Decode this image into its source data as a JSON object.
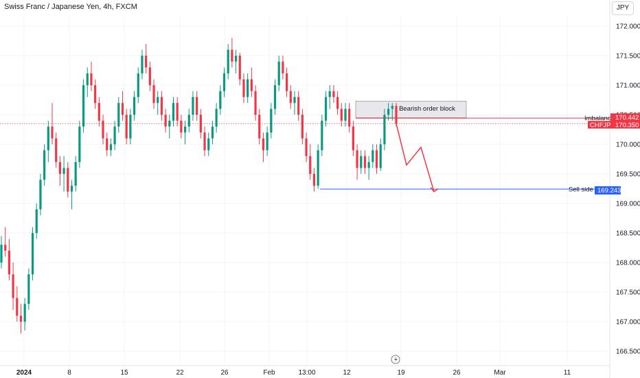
{
  "header": {
    "title": "Swiss Franc / Japanese Yen, 4h, FXCM",
    "currency_button": "JPY"
  },
  "colors": {
    "up": "#089981",
    "down": "#f23645",
    "blue_line": "#2962ff",
    "grid": "#f0f3fa",
    "order_block_fill": "#e8e8ec",
    "order_block_border": "#9598a1"
  },
  "chart_data": {
    "type": "candlestick",
    "title": "Swiss Franc / Japanese Yen, 4h, FXCM",
    "symbol": "CHFJPY",
    "ylim": [
      166.4,
      172.2
    ],
    "y_ticks": [
      "172.000",
      "171.500",
      "171.000",
      "170.500",
      "170.000",
      "169.500",
      "169.000",
      "168.500",
      "168.000",
      "167.500",
      "167.000",
      "166.500"
    ],
    "x_tick_labels": [
      "2024",
      "8",
      "15",
      "22",
      "26",
      "Feb",
      "13:00",
      "12",
      "19",
      "26",
      "Mar",
      "11"
    ],
    "price_tags": [
      {
        "label": "170.442",
        "value": 170.442,
        "color": "#f23645"
      },
      {
        "label": "CHFJPY",
        "color": "#f23645"
      },
      {
        "label": "170.350",
        "value": 170.35,
        "color": "#f23645"
      },
      {
        "label": "169.243",
        "value": 169.243,
        "color": "#2962ff"
      }
    ],
    "annotations": {
      "bearish_order_block": {
        "label": "Bearish order block",
        "top": 170.73,
        "bottom": 170.45
      },
      "imbalance": {
        "label": "Imbalance",
        "value": 170.442
      },
      "sell_side_liquidity": {
        "label": "Sell side liquidity",
        "value": 169.243
      },
      "projection": [
        170.35,
        169.65,
        169.95,
        169.2
      ]
    },
    "candles": [
      [
        168.0,
        168.45,
        167.9,
        168.3
      ],
      [
        168.3,
        168.6,
        168.1,
        168.2
      ],
      [
        168.2,
        168.4,
        167.7,
        167.8
      ],
      [
        167.8,
        168.0,
        167.2,
        167.4
      ],
      [
        167.4,
        167.6,
        167.0,
        167.1
      ],
      [
        167.1,
        167.3,
        166.8,
        167.0
      ],
      [
        167.0,
        167.4,
        166.85,
        167.3
      ],
      [
        167.3,
        167.9,
        167.2,
        167.8
      ],
      [
        167.8,
        168.6,
        167.7,
        168.5
      ],
      [
        168.5,
        169.0,
        168.4,
        168.9
      ],
      [
        168.9,
        169.5,
        168.8,
        169.4
      ],
      [
        169.4,
        170.0,
        169.3,
        169.9
      ],
      [
        169.9,
        170.4,
        169.7,
        170.3
      ],
      [
        170.3,
        170.7,
        170.0,
        170.1
      ],
      [
        170.1,
        170.2,
        169.6,
        169.7
      ],
      [
        169.7,
        169.8,
        169.3,
        169.5
      ],
      [
        169.5,
        169.8,
        169.2,
        169.6
      ],
      [
        169.6,
        169.7,
        169.1,
        169.2
      ],
      [
        169.2,
        169.4,
        168.9,
        169.3
      ],
      [
        169.3,
        169.8,
        169.2,
        169.7
      ],
      [
        169.7,
        170.4,
        169.6,
        170.3
      ],
      [
        170.3,
        171.1,
        170.2,
        171.0
      ],
      [
        171.0,
        171.3,
        170.8,
        171.2
      ],
      [
        171.2,
        171.4,
        170.9,
        171.0
      ],
      [
        171.0,
        171.1,
        170.6,
        170.7
      ],
      [
        170.7,
        170.8,
        170.3,
        170.4
      ],
      [
        170.4,
        170.5,
        170.0,
        170.1
      ],
      [
        170.1,
        170.2,
        169.8,
        169.9
      ],
      [
        169.9,
        170.1,
        169.8,
        170.0
      ],
      [
        170.0,
        170.4,
        169.9,
        170.3
      ],
      [
        170.3,
        170.8,
        170.2,
        170.7
      ],
      [
        170.7,
        170.9,
        170.4,
        170.5
      ],
      [
        170.5,
        170.6,
        170.0,
        170.1
      ],
      [
        170.1,
        170.6,
        170.0,
        170.5
      ],
      [
        170.5,
        170.9,
        170.4,
        170.8
      ],
      [
        170.8,
        171.3,
        170.7,
        171.2
      ],
      [
        171.2,
        171.6,
        171.1,
        171.5
      ],
      [
        171.5,
        171.7,
        171.2,
        171.3
      ],
      [
        171.3,
        171.4,
        170.9,
        171.0
      ],
      [
        171.0,
        171.1,
        170.6,
        170.7
      ],
      [
        170.7,
        170.9,
        170.5,
        170.8
      ],
      [
        170.8,
        170.9,
        170.4,
        170.5
      ],
      [
        170.5,
        170.6,
        170.2,
        170.3
      ],
      [
        170.3,
        170.5,
        170.1,
        170.4
      ],
      [
        170.4,
        170.8,
        170.3,
        170.7
      ],
      [
        170.7,
        170.8,
        170.3,
        170.4
      ],
      [
        170.4,
        170.5,
        170.1,
        170.2
      ],
      [
        170.2,
        170.4,
        170.0,
        170.3
      ],
      [
        170.3,
        170.6,
        170.2,
        170.5
      ],
      [
        170.5,
        170.9,
        170.4,
        170.8
      ],
      [
        170.8,
        170.9,
        170.4,
        170.5
      ],
      [
        170.5,
        170.6,
        170.1,
        170.2
      ],
      [
        170.2,
        170.3,
        169.8,
        169.9
      ],
      [
        169.9,
        170.2,
        169.8,
        170.1
      ],
      [
        170.1,
        170.4,
        170.0,
        170.3
      ],
      [
        170.3,
        170.7,
        170.2,
        170.6
      ],
      [
        170.6,
        171.0,
        170.5,
        170.9
      ],
      [
        170.9,
        171.3,
        170.8,
        171.2
      ],
      [
        171.2,
        171.7,
        171.1,
        171.6
      ],
      [
        171.6,
        171.8,
        171.3,
        171.4
      ],
      [
        171.4,
        171.6,
        171.2,
        171.5
      ],
      [
        171.5,
        171.55,
        171.0,
        171.1
      ],
      [
        171.1,
        171.2,
        170.7,
        170.8
      ],
      [
        170.8,
        171.2,
        170.7,
        171.1
      ],
      [
        171.1,
        171.3,
        170.8,
        170.9
      ],
      [
        170.9,
        171.0,
        170.4,
        170.5
      ],
      [
        170.5,
        170.6,
        170.0,
        170.1
      ],
      [
        170.1,
        170.2,
        169.7,
        169.9
      ],
      [
        169.9,
        170.3,
        169.8,
        170.2
      ],
      [
        170.2,
        170.7,
        170.1,
        170.6
      ],
      [
        170.6,
        171.1,
        170.5,
        171.0
      ],
      [
        171.0,
        171.5,
        170.9,
        171.4
      ],
      [
        171.4,
        171.5,
        171.1,
        171.2
      ],
      [
        171.2,
        171.3,
        170.8,
        170.9
      ],
      [
        170.9,
        171.0,
        170.6,
        170.7
      ],
      [
        170.7,
        170.9,
        170.5,
        170.8
      ],
      [
        170.8,
        170.9,
        170.4,
        170.5
      ],
      [
        170.5,
        170.6,
        170.0,
        170.1
      ],
      [
        170.1,
        170.2,
        169.7,
        169.8
      ],
      [
        169.8,
        170.0,
        169.4,
        169.5
      ],
      [
        169.5,
        169.6,
        169.2,
        169.3
      ],
      [
        169.3,
        170.0,
        169.25,
        169.9
      ],
      [
        169.9,
        170.5,
        169.8,
        170.4
      ],
      [
        170.4,
        170.9,
        170.3,
        170.8
      ],
      [
        170.8,
        171.0,
        170.6,
        170.9
      ],
      [
        170.9,
        171.0,
        170.7,
        170.8
      ],
      [
        170.8,
        170.9,
        170.5,
        170.6
      ],
      [
        170.6,
        170.7,
        170.3,
        170.4
      ],
      [
        170.4,
        170.7,
        170.3,
        170.6
      ],
      [
        170.6,
        170.7,
        170.2,
        170.3
      ],
      [
        170.3,
        170.4,
        169.8,
        169.9
      ],
      [
        169.9,
        170.0,
        169.4,
        169.6
      ],
      [
        169.6,
        169.9,
        169.5,
        169.8
      ],
      [
        169.8,
        169.9,
        169.5,
        169.6
      ],
      [
        169.6,
        169.8,
        169.4,
        169.7
      ],
      [
        169.7,
        170.0,
        169.6,
        169.9
      ],
      [
        169.9,
        170.0,
        169.5,
        169.6
      ],
      [
        169.6,
        170.1,
        169.55,
        170.0
      ],
      [
        170.0,
        170.6,
        169.9,
        170.5
      ],
      [
        170.5,
        170.7,
        170.4,
        170.6
      ],
      [
        170.6,
        170.7,
        170.4,
        170.65
      ],
      [
        170.65,
        170.7,
        170.3,
        170.35
      ]
    ]
  }
}
